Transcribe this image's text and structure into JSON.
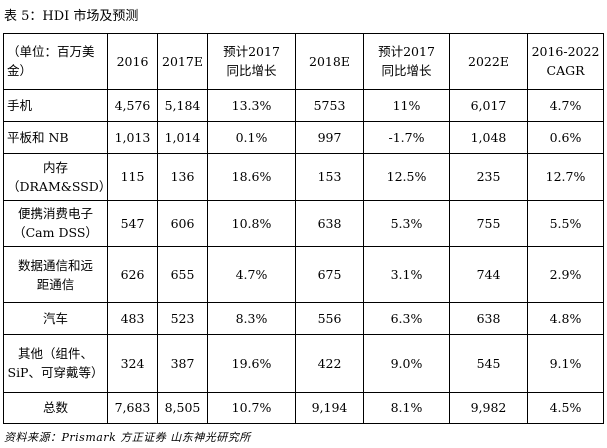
{
  "caption": "表 5：HDI 市场及预测",
  "source": "资料来源：Prismark  方正证券  山东神光研究所",
  "table": {
    "headers": [
      [
        "（单位：百万美",
        "金）"
      ],
      [
        "2016"
      ],
      [
        "2017E"
      ],
      [
        "预计2017",
        "同比增长"
      ],
      [
        "2018E"
      ],
      [
        "预计2017",
        "同比增长"
      ],
      [
        "2022E"
      ],
      [
        "2016-2022",
        "CAGR"
      ]
    ],
    "rows": [
      {
        "label": [
          "手机"
        ],
        "cells": [
          "4,576",
          "5,184",
          "13.3%",
          "5753",
          "11%",
          "6,017",
          "4.7%"
        ]
      },
      {
        "label": [
          "平板和 NB"
        ],
        "cells": [
          "1,013",
          "1,014",
          "0.1%",
          "997",
          "-1.7%",
          "1,048",
          "0.6%"
        ]
      },
      {
        "label": [
          "内存",
          "（DRAM&SSD）"
        ],
        "cells": [
          "115",
          "136",
          "18.6%",
          "153",
          "12.5%",
          "235",
          "12.7%"
        ]
      },
      {
        "label": [
          "便携消费电子",
          "（Cam DSS）"
        ],
        "cells": [
          "547",
          "606",
          "10.8%",
          "638",
          "5.3%",
          "755",
          "5.5%"
        ]
      },
      {
        "label": [
          "数据通信和远",
          "距通信"
        ],
        "cells": [
          "626",
          "655",
          "4.7%",
          "675",
          "3.1%",
          "744",
          "2.9%"
        ]
      },
      {
        "label": [
          "汽车"
        ],
        "cells": [
          "483",
          "523",
          "8.3%",
          "556",
          "6.3%",
          "638",
          "4.8%"
        ]
      },
      {
        "label": [
          "其他（组件、",
          "SiP、可穿戴等）"
        ],
        "cells": [
          "324",
          "387",
          "19.6%",
          "422",
          "9.0%",
          "545",
          "9.1%"
        ]
      },
      {
        "label": [
          "总数"
        ],
        "cells": [
          "7,683",
          "8,505",
          "10.7%",
          "9,194",
          "8.1%",
          "9,982",
          "4.5%"
        ]
      }
    ]
  }
}
